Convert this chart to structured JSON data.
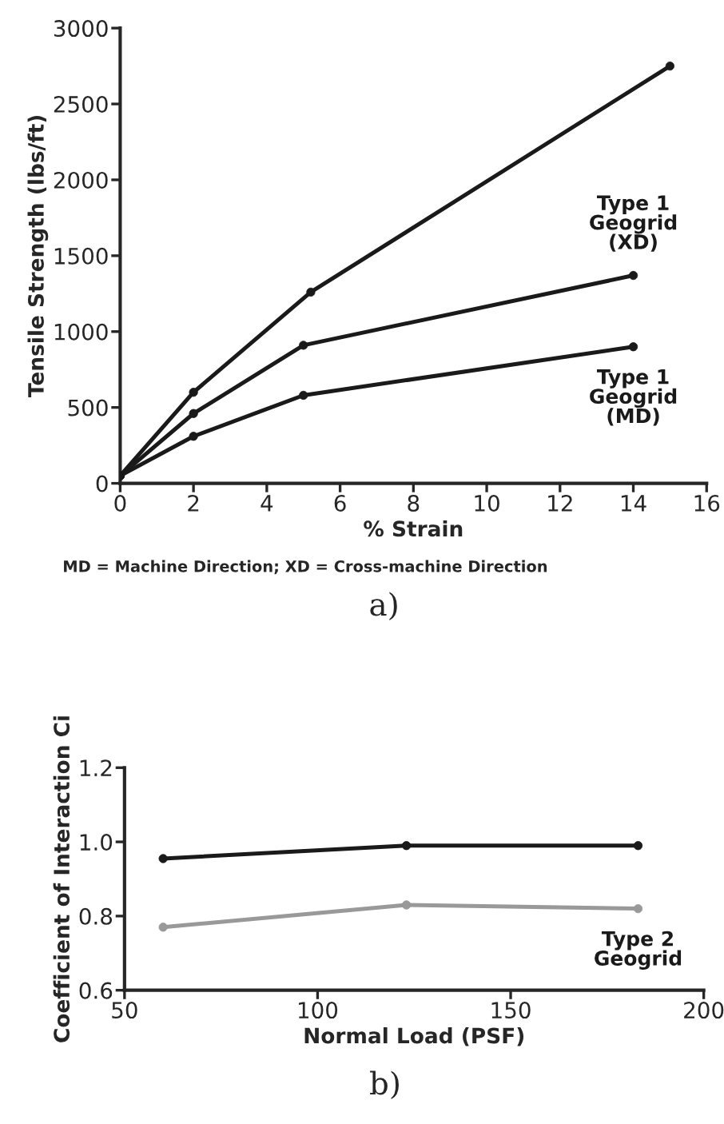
{
  "chart_data": [
    {
      "type": "line",
      "xlabel": "% Strain",
      "ylabel": "Tensile Strength (lbs/ft)",
      "xlim": [
        0,
        16
      ],
      "xticks": [
        0,
        2,
        4,
        6,
        8,
        10,
        12,
        14,
        16
      ],
      "ylim": [
        0,
        3000
      ],
      "yticks": [
        0,
        500,
        1000,
        1500,
        2000,
        2500,
        3000
      ],
      "marker": "circle",
      "line_style": "solid",
      "grid": false,
      "legend": false,
      "series": [
        {
          "color": "#1a1a1a",
          "x": [
            0,
            2,
            5.2,
            15
          ],
          "values": [
            50,
            600,
            1260,
            2750
          ]
        },
        {
          "name": "Type 1\nGeogrid\n(XD)",
          "color": "#1a1a1a",
          "x": [
            0,
            2,
            5,
            14
          ],
          "values": [
            50,
            460,
            910,
            1370
          ]
        },
        {
          "name": "Type 1\nGeogrid\n(MD)",
          "color": "#1a1a1a",
          "x": [
            0,
            2,
            5,
            14
          ],
          "values": [
            50,
            310,
            580,
            900
          ]
        }
      ],
      "annotations": [
        "MD = Machine Direction; XD = Cross-machine Direction",
        "a)"
      ]
    },
    {
      "type": "line",
      "xlabel": "Normal Load (PSF)",
      "ylabel": "Coefficient of Interaction Ci",
      "xlim": [
        50,
        200
      ],
      "xticks": [
        50,
        100,
        150,
        200
      ],
      "ylim": [
        0.6,
        1.2
      ],
      "yticks": [
        {
          "value": 0.6,
          "label": "0.6"
        },
        {
          "value": 0.8,
          "label": "0.8"
        },
        {
          "value": 1.0,
          "label": "1.0"
        },
        {
          "value": 1.2,
          "label": "1.2"
        }
      ],
      "marker": "circle",
      "line_style": "solid",
      "grid": false,
      "legend": false,
      "series": [
        {
          "color": "#1a1a1a",
          "x": [
            60,
            123,
            183
          ],
          "values": [
            0.955,
            0.99,
            0.99
          ]
        },
        {
          "name": "Type 2\nGeogrid",
          "color": "#999999",
          "x": [
            60,
            123,
            183
          ],
          "values": [
            0.77,
            0.83,
            0.82
          ]
        }
      ],
      "annotations": [
        "b)"
      ]
    }
  ]
}
